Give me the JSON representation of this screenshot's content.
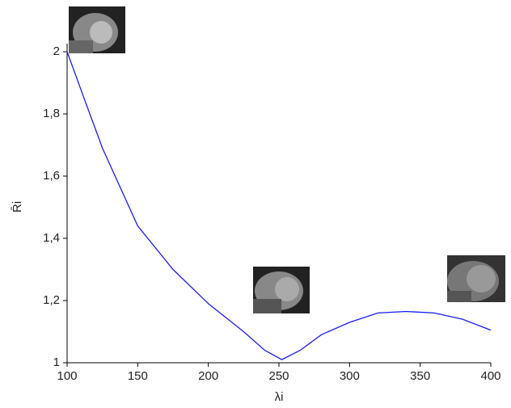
{
  "chart_data": {
    "type": "line",
    "x_label": "λi",
    "y_label": "R̄i",
    "x": [
      100,
      112,
      125,
      150,
      175,
      200,
      225,
      240,
      252,
      265,
      280,
      300,
      320,
      340,
      360,
      380,
      400
    ],
    "series": [
      {
        "color": "#1a1aff",
        "values": [
          2.0,
          1.85,
          1.69,
          1.44,
          1.3,
          1.19,
          1.1,
          1.04,
          1.01,
          1.04,
          1.09,
          1.13,
          1.16,
          1.165,
          1.16,
          1.14,
          1.105
        ]
      }
    ],
    "xlim": [
      100,
      400
    ],
    "xticks": [
      100,
      150,
      200,
      250,
      300,
      350,
      400
    ],
    "ylim": [
      1,
      2
    ],
    "yticks": [
      1,
      {
        "value": 1.2,
        "label": "1,2"
      },
      {
        "value": 1.4,
        "label": "1,4"
      },
      {
        "value": 1.6,
        "label": "1,6"
      },
      {
        "value": 1.8,
        "label": "1,8"
      },
      2
    ],
    "grid": false
  }
}
